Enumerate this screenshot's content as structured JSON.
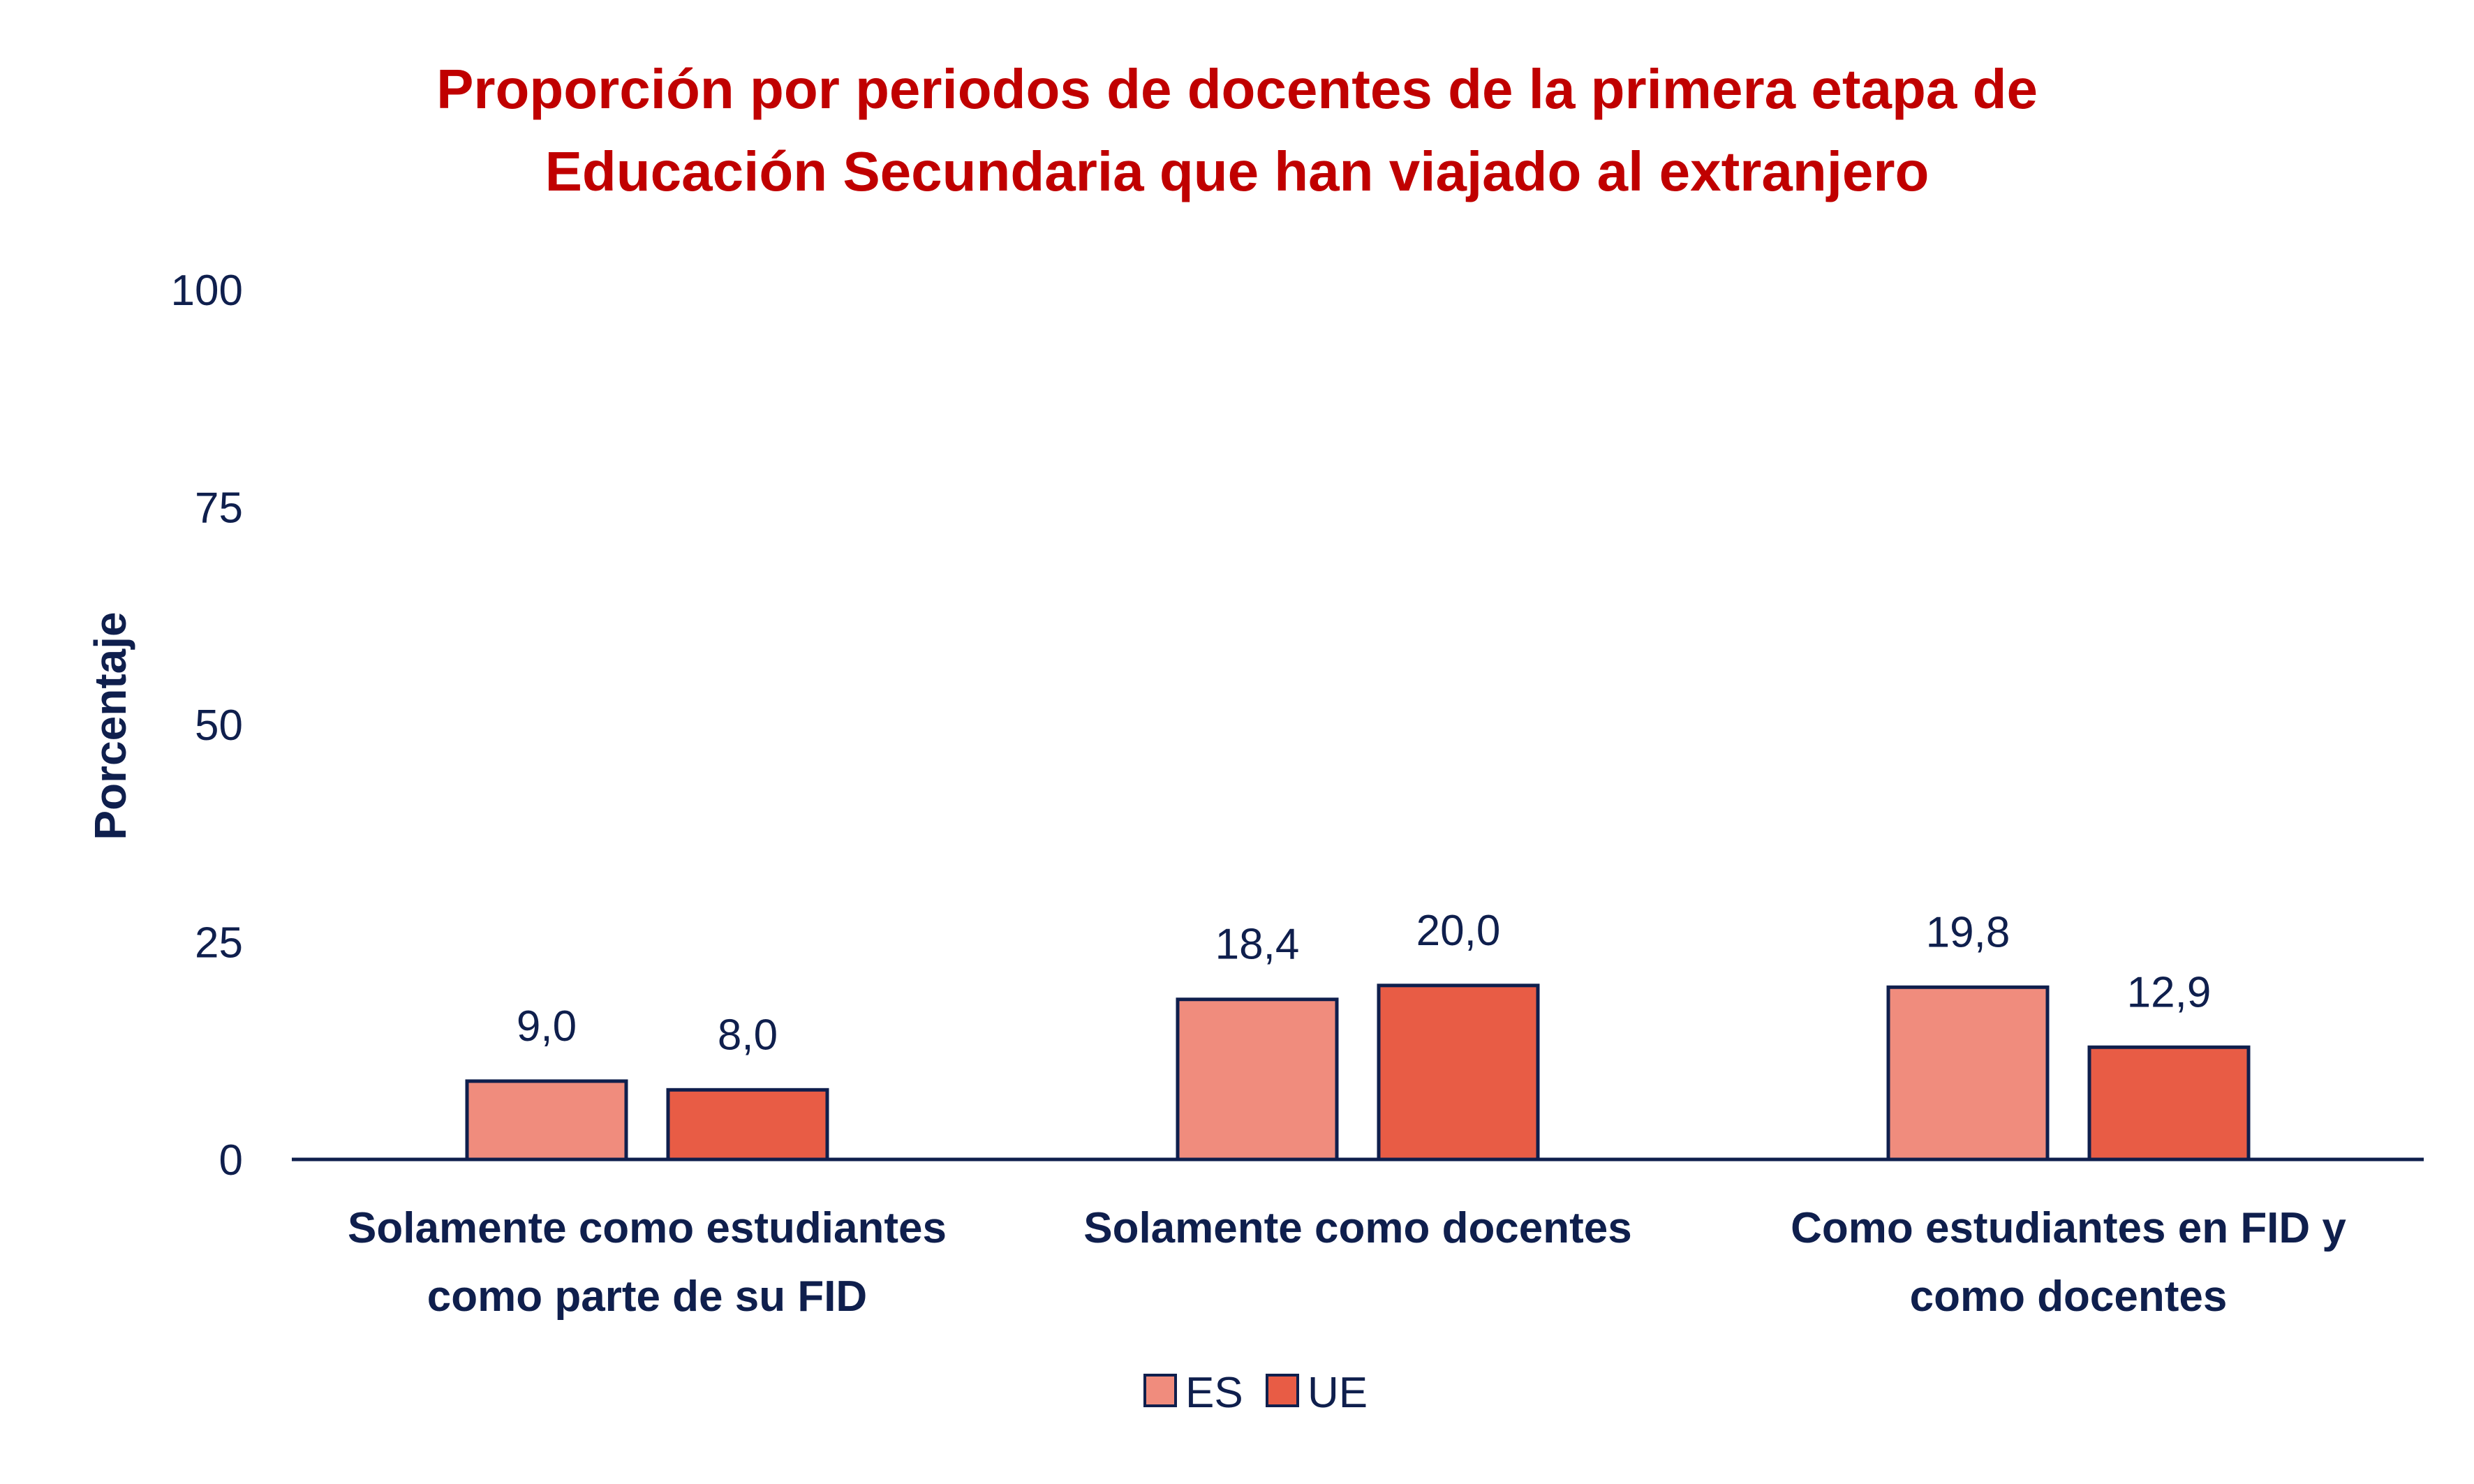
{
  "chart_data": {
    "type": "bar",
    "title_lines": [
      "Proporción por periodos de docentes de la primera etapa de",
      "Educación Secundaria que han viajado al extranjero"
    ],
    "ylabel": "Porcentaje",
    "ylim": [
      0,
      100
    ],
    "yticks": [
      "0",
      "25",
      "50",
      "75",
      "100"
    ],
    "categories": [
      [
        "Solamente como estudiantes",
        "como parte de su FID"
      ],
      [
        "Solamente como docentes"
      ],
      [
        "Como estudiantes en FID y",
        "como docentes"
      ]
    ],
    "series": [
      {
        "name": "ES",
        "color": "#f08c7d",
        "values": [
          9.0,
          18.4,
          19.8
        ],
        "labels": [
          "9,0",
          "18,4",
          "19,8"
        ]
      },
      {
        "name": "UE",
        "color": "#e85c45",
        "values": [
          8.0,
          20.0,
          12.9
        ],
        "labels": [
          "8,0",
          "20,0",
          "12,9"
        ]
      }
    ],
    "legend_position": "bottom",
    "grid": false,
    "bar_edge_color": "#0f1f4d",
    "axis_color": "#0f1f4d",
    "title_color": "#c00000"
  }
}
